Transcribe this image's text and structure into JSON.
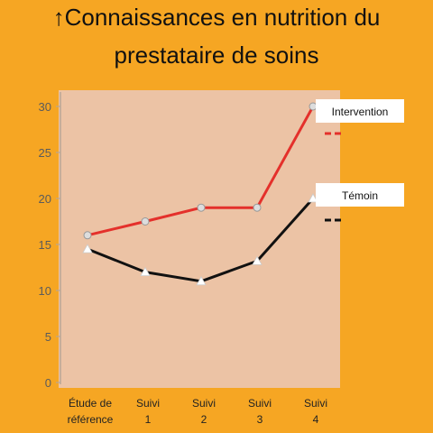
{
  "title_lines": [
    "↑Connaissances en nutrition du",
    "prestataire de soins"
  ],
  "colors": {
    "background": "#f6a623",
    "plot_area": "#ecc3a5",
    "intervention": "#e4302b",
    "temoin": "#111111"
  },
  "chart_data": {
    "type": "line",
    "categories": [
      [
        "Étude de",
        "référence"
      ],
      [
        "Suivi",
        "1"
      ],
      [
        "Suivi",
        "2"
      ],
      [
        "Suivi",
        "3"
      ],
      [
        "Suivi",
        "4"
      ]
    ],
    "ylim": [
      0,
      30
    ],
    "yticks": [
      0,
      5,
      10,
      15,
      20,
      25,
      30
    ],
    "grid": false,
    "series": [
      {
        "name": "Intervention",
        "values": [
          16,
          17.5,
          19,
          19,
          30
        ],
        "color": "#e4302b",
        "marker": "circle"
      },
      {
        "name": "Témoin",
        "values": [
          14.5,
          12,
          11,
          13.2,
          20
        ],
        "color": "#111111",
        "marker": "triangle"
      }
    ],
    "legend_placement": "right"
  }
}
